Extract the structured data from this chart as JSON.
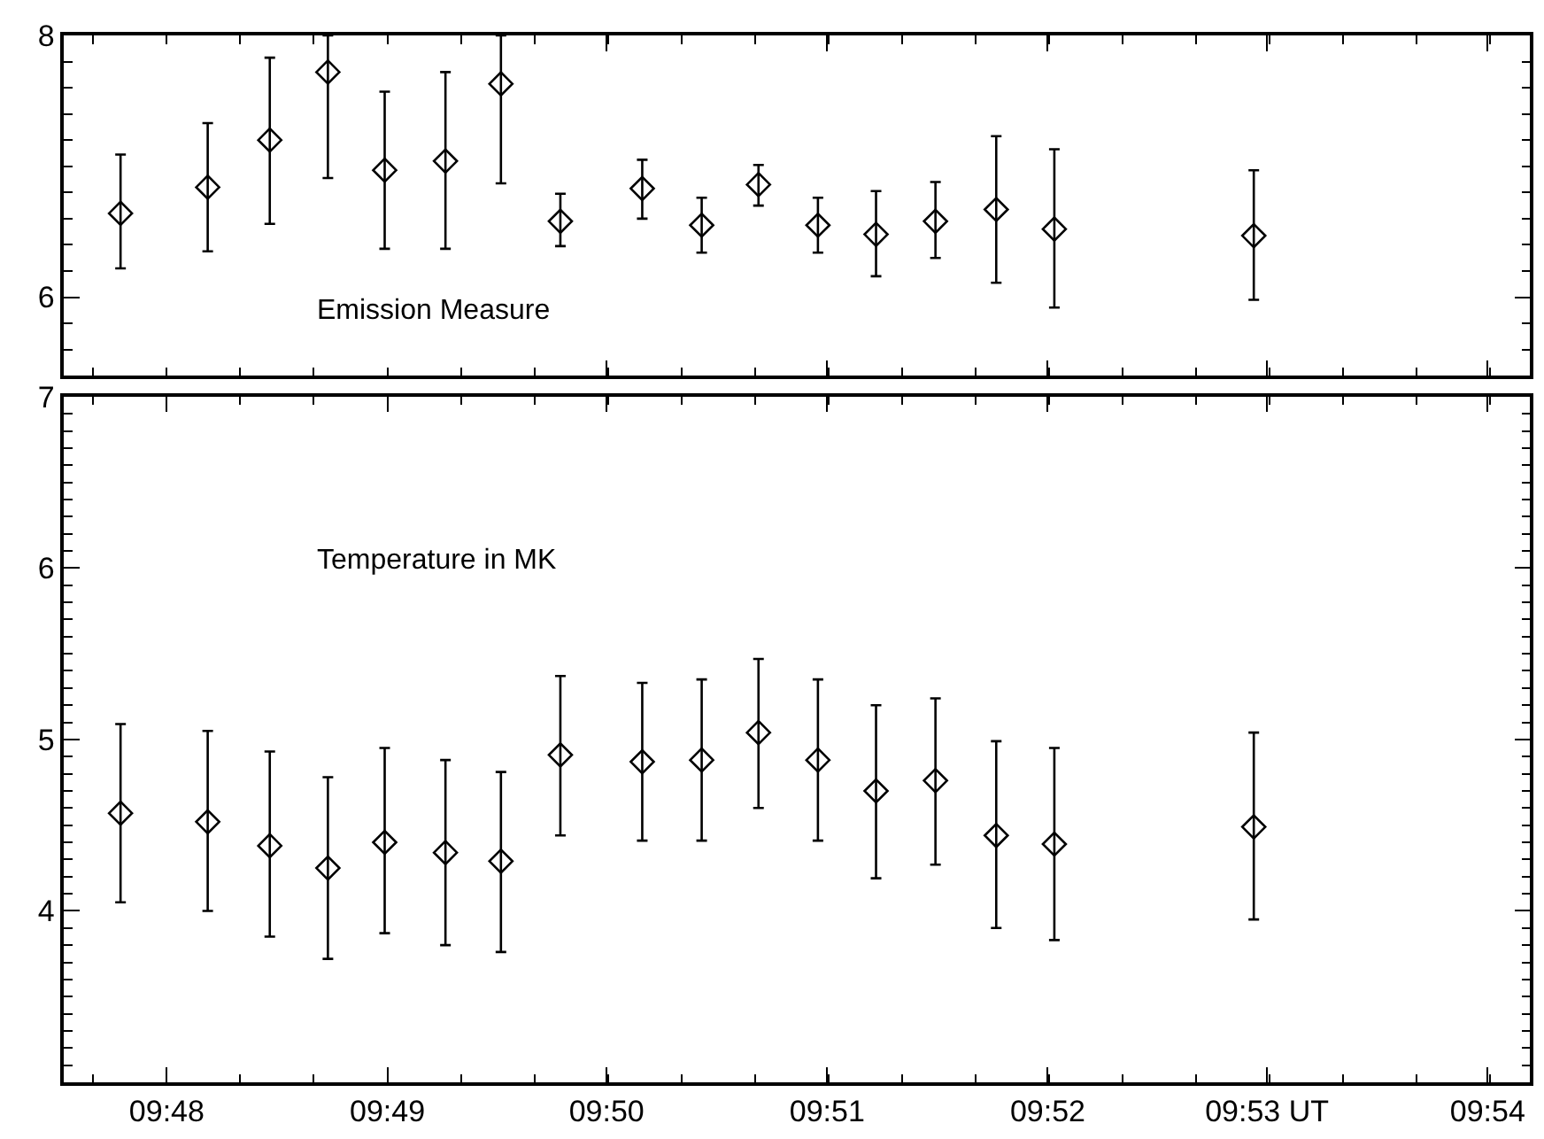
{
  "chart_data": [
    {
      "type": "scatter",
      "marker": "diamond",
      "tick_labels": "y",
      "annotations": [
        "Emission Measure"
      ],
      "x": [
        9.7965,
        9.8031,
        9.8078,
        9.8122,
        9.8165,
        9.8211,
        9.8253,
        9.8298,
        9.836,
        9.8405,
        9.8448,
        9.8493,
        9.8537,
        9.8582,
        9.8628,
        9.8672,
        9.8823
      ],
      "series": [
        {
          "color": "#000000",
          "values": [
            6.64,
            6.84,
            7.2,
            7.72,
            6.97,
            7.04,
            7.63,
            6.58,
            6.83,
            6.55,
            6.86,
            6.55,
            6.48,
            6.58,
            6.67,
            6.52,
            6.47
          ],
          "errors": [
            [
              6.22,
              7.09
            ],
            [
              6.35,
              7.33
            ],
            [
              6.56,
              7.83
            ],
            [
              6.91,
              8.0
            ],
            [
              6.37,
              7.57
            ],
            [
              6.37,
              7.72
            ],
            [
              6.87,
              8.0
            ],
            [
              6.39,
              6.79
            ],
            [
              6.6,
              7.05
            ],
            [
              6.34,
              6.76
            ],
            [
              6.7,
              7.01
            ],
            [
              6.34,
              6.76
            ],
            [
              6.16,
              6.81
            ],
            [
              6.3,
              6.88
            ],
            [
              6.11,
              7.23
            ],
            [
              5.92,
              7.13
            ],
            [
              5.98,
              6.97
            ]
          ]
        }
      ],
      "xlim": [
        9.7922,
        9.9032
      ],
      "xticks": [
        {
          "value": 9.8,
          "label": null
        },
        {
          "value": 9.8167,
          "label": null
        },
        {
          "value": 9.8333,
          "label": null
        },
        {
          "value": 9.85,
          "label": null
        },
        {
          "value": 9.8667,
          "label": null
        },
        {
          "value": 9.8833,
          "label": null
        },
        {
          "value": 9.9,
          "label": null
        }
      ],
      "ylim": [
        5.4,
        8
      ],
      "yticks": [
        6,
        8
      ]
    },
    {
      "type": "scatter",
      "marker": "diamond",
      "annotations": [
        "Temperature in MK"
      ],
      "x": [
        9.7965,
        9.8031,
        9.8078,
        9.8122,
        9.8165,
        9.8211,
        9.8253,
        9.8298,
        9.836,
        9.8405,
        9.8448,
        9.8493,
        9.8537,
        9.8582,
        9.8628,
        9.8672,
        9.8823
      ],
      "series": [
        {
          "color": "#000000",
          "values": [
            4.57,
            4.52,
            4.38,
            4.25,
            4.4,
            4.34,
            4.29,
            4.91,
            4.87,
            4.88,
            5.04,
            4.88,
            4.7,
            4.76,
            4.44,
            4.39,
            4.49
          ],
          "errors": [
            [
              4.05,
              5.09
            ],
            [
              4.0,
              5.05
            ],
            [
              3.85,
              4.93
            ],
            [
              3.72,
              4.78
            ],
            [
              3.87,
              4.95
            ],
            [
              3.8,
              4.88
            ],
            [
              3.76,
              4.81
            ],
            [
              4.44,
              5.37
            ],
            [
              4.41,
              5.33
            ],
            [
              4.41,
              5.35
            ],
            [
              4.6,
              5.47
            ],
            [
              4.41,
              5.35
            ],
            [
              4.19,
              5.2
            ],
            [
              4.27,
              5.24
            ],
            [
              3.9,
              4.99
            ],
            [
              3.83,
              4.95
            ],
            [
              3.95,
              5.04
            ]
          ]
        }
      ],
      "xlim": [
        9.7922,
        9.9032
      ],
      "xticks": [
        {
          "value": 9.8,
          "label": "09:48"
        },
        {
          "value": 9.8167,
          "label": "09:49"
        },
        {
          "value": 9.8333,
          "label": "09:50"
        },
        {
          "value": 9.85,
          "label": "09:51"
        },
        {
          "value": 9.8667,
          "label": "09:52"
        },
        {
          "value": 9.8833,
          "label": "09:53 UT"
        },
        {
          "value": 9.9,
          "label": "09:54"
        }
      ],
      "ylim": [
        3,
        7
      ],
      "yticks": [
        4,
        5,
        6,
        7
      ]
    }
  ]
}
